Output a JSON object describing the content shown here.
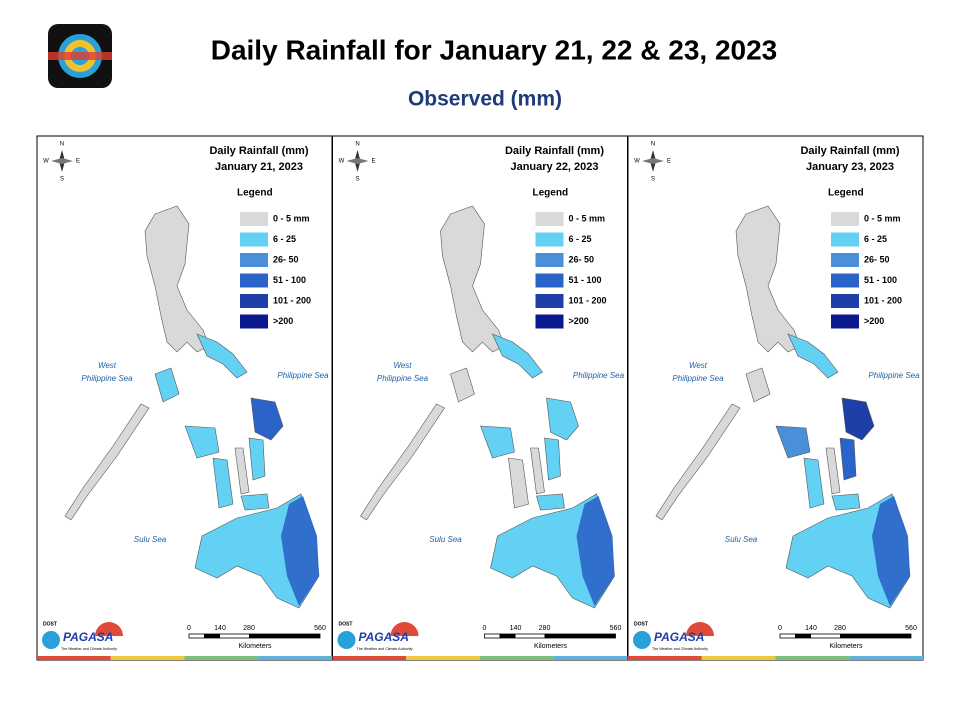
{
  "header": {
    "title": "Daily Rainfall for January 21, 22 & 23, 2023",
    "subtitle": "Observed (mm)"
  },
  "panels": [
    {
      "heading": "Daily Rainfall (mm)",
      "date": "January 21, 2023",
      "legend_title": "Legend",
      "legend": [
        {
          "label": "0 - 5 mm",
          "color": "#d9d9d9"
        },
        {
          "label": "6 - 25",
          "color": "#63d1f4"
        },
        {
          "label": "26- 50",
          "color": "#4a90d9"
        },
        {
          "label": "51 - 100",
          "color": "#2b64c8"
        },
        {
          "label": "101 - 200",
          "color": "#1f3fa8"
        },
        {
          "label": ">200",
          "color": "#0a1a8c"
        }
      ],
      "compass": [
        "N",
        "S",
        "W",
        "E"
      ],
      "seas": {
        "west": [
          "West",
          "Philippine Sea"
        ],
        "east": "Philippine Sea",
        "sulu": "Sulu Sea"
      },
      "scale": {
        "ticks": [
          "0",
          "140",
          "280",
          "560"
        ],
        "unit": "Kilometers"
      },
      "logo": {
        "agency": "DOST",
        "brand": "PAGASA",
        "tagline": "The Weather and Climate Authority"
      }
    },
    {
      "heading": "Daily Rainfall (mm)",
      "date": "January 22, 2023",
      "legend_title": "Legend",
      "legend": [
        {
          "label": "0 - 5 mm",
          "color": "#d9d9d9"
        },
        {
          "label": "6 - 25",
          "color": "#63d1f4"
        },
        {
          "label": "26- 50",
          "color": "#4a90d9"
        },
        {
          "label": "51 - 100",
          "color": "#2b64c8"
        },
        {
          "label": "101 - 200",
          "color": "#1f3fa8"
        },
        {
          "label": ">200",
          "color": "#0a1a8c"
        }
      ],
      "compass": [
        "N",
        "S",
        "W",
        "E"
      ],
      "seas": {
        "west": [
          "West",
          "Philippine Sea"
        ],
        "east": "Philippine Sea",
        "sulu": "Sulu Sea"
      },
      "scale": {
        "ticks": [
          "0",
          "140",
          "280",
          "560"
        ],
        "unit": "Kilometers"
      },
      "logo": {
        "agency": "DOST",
        "brand": "PAGASA",
        "tagline": "The Weather and Climate Authority"
      }
    },
    {
      "heading": "Daily Rainfall (mm)",
      "date": "January 23, 2023",
      "legend_title": "Legend",
      "legend": [
        {
          "label": "0 - 5 mm",
          "color": "#d9d9d9"
        },
        {
          "label": "6 - 25",
          "color": "#63d1f4"
        },
        {
          "label": "26- 50",
          "color": "#4a90d9"
        },
        {
          "label": "51 - 100",
          "color": "#2b64c8"
        },
        {
          "label": "101 - 200",
          "color": "#1f3fa8"
        },
        {
          "label": ">200",
          "color": "#0a1a8c"
        }
      ],
      "compass": [
        "N",
        "S",
        "W",
        "E"
      ],
      "seas": {
        "west": [
          "West",
          "Philippine Sea"
        ],
        "east": "Philippine Sea",
        "sulu": "Sulu Sea"
      },
      "scale": {
        "ticks": [
          "0",
          "140",
          "280",
          "560"
        ],
        "unit": "Kilometers"
      },
      "logo": {
        "agency": "DOST",
        "brand": "PAGASA",
        "tagline": "The Weather and Climate Authority"
      }
    }
  ]
}
